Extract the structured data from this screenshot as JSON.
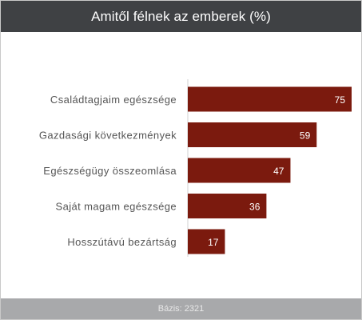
{
  "header": {
    "title": "Amitől félnek az emberek (%)"
  },
  "footer": {
    "base": "Bázis: 2321"
  },
  "colors": {
    "bar": "#7b1a0e",
    "header_bg": "#3f4144",
    "footer_bg": "#a8a9ab",
    "axis": "#d0d0d0"
  },
  "chart_data": {
    "type": "bar",
    "orientation": "horizontal",
    "title": "Amitől félnek az emberek (%)",
    "categories": [
      "Családtagjaim egészsége",
      "Gazdasági következmények",
      "Egészségügy összeomlása",
      "Saját magam egészsége",
      "Hosszútávú bezártság"
    ],
    "values": [
      75,
      59,
      47,
      36,
      17
    ],
    "xlim": [
      0,
      75
    ],
    "grid": false,
    "legend": "none",
    "data_labels": true
  }
}
